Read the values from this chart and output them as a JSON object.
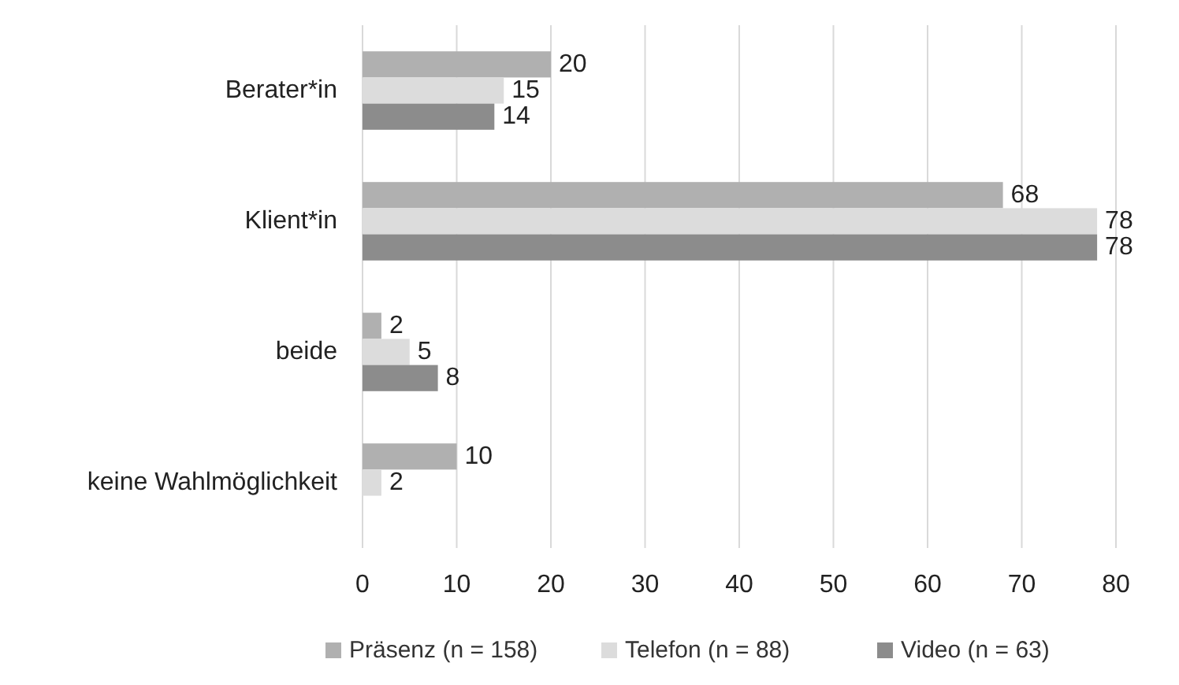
{
  "chart_data": {
    "type": "bar",
    "orientation": "horizontal",
    "categories": [
      "Berater*in",
      "Klient*in",
      "beide",
      "keine Wahlmöglichkeit"
    ],
    "series": [
      {
        "name": "Präsenz (n = 158)",
        "color": "#b0b0b0",
        "values": [
          20,
          68,
          2,
          10
        ]
      },
      {
        "name": "Telefon (n = 88)",
        "color": "#dcdcdc",
        "values": [
          15,
          78,
          5,
          2
        ]
      },
      {
        "name": "Video (n = 63)",
        "color": "#8c8c8c",
        "values": [
          14,
          78,
          8,
          null
        ]
      }
    ],
    "xlim": [
      0,
      80
    ],
    "xticks": [
      0,
      10,
      20,
      30,
      40,
      50,
      60,
      70,
      80
    ],
    "grid": "x",
    "legend": "bottom",
    "data_labels": true
  }
}
